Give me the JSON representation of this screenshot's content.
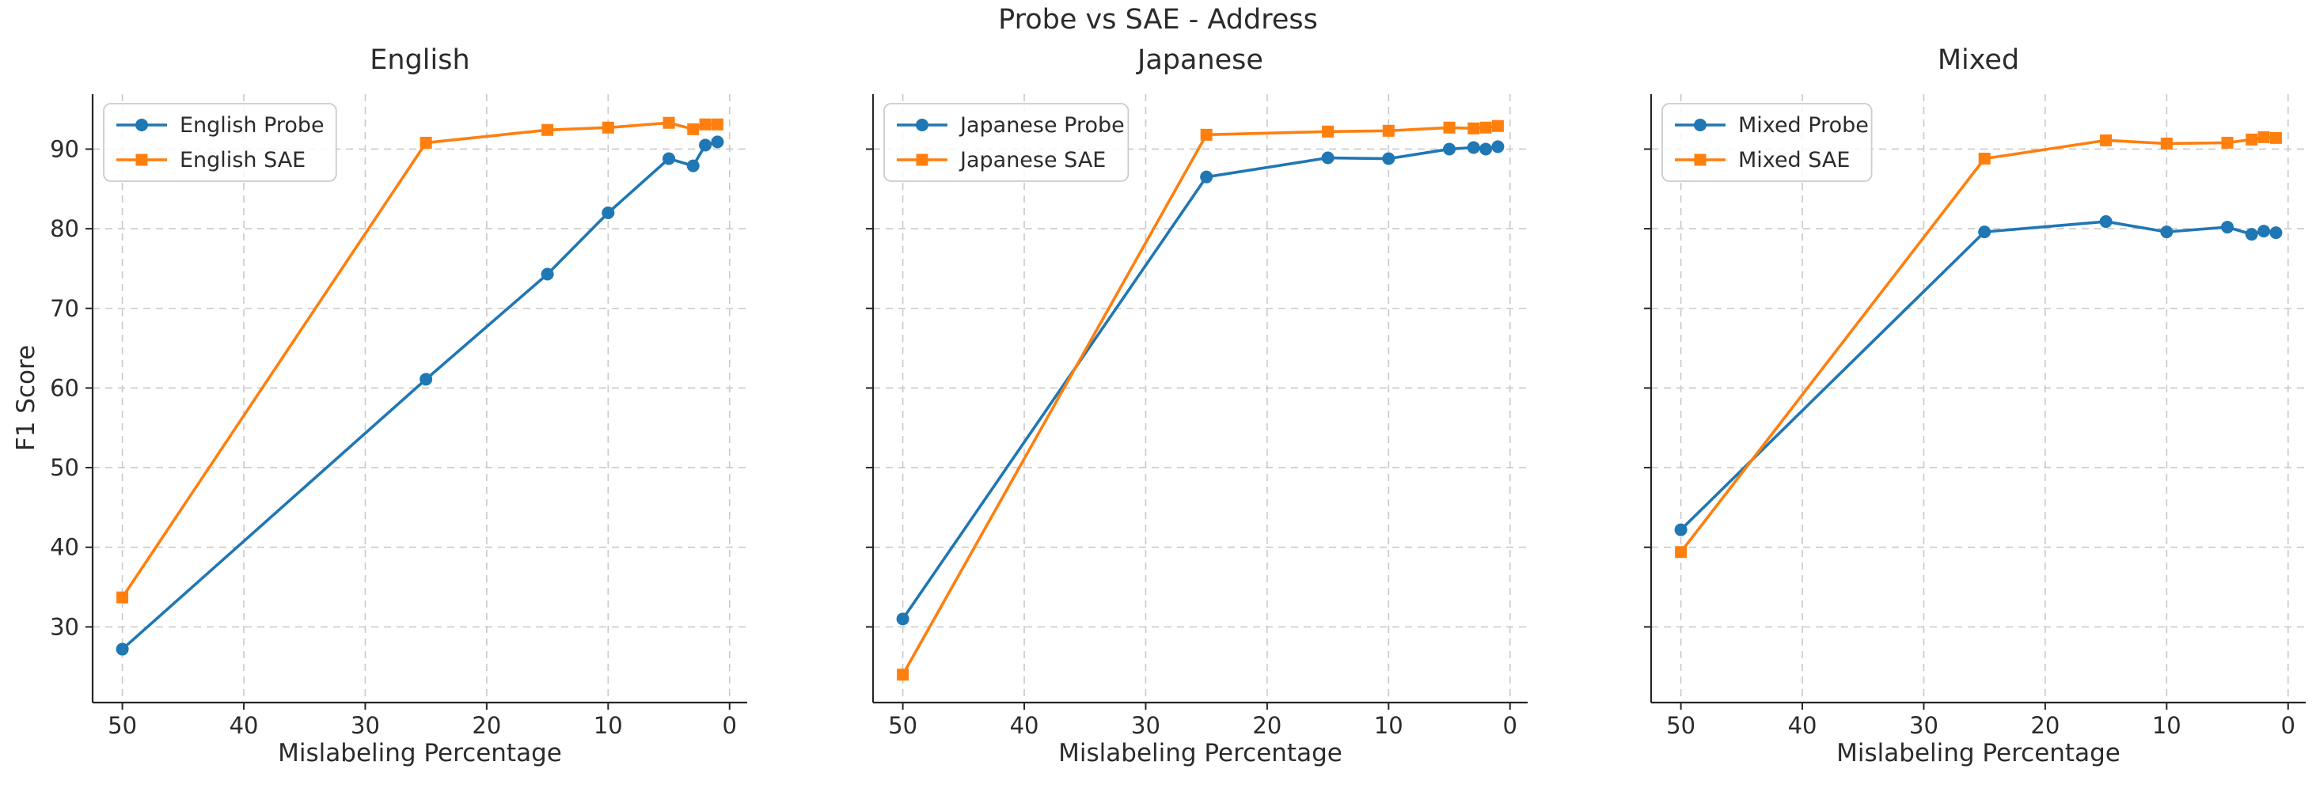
{
  "figure": {
    "title": "Probe vs SAE - Address",
    "background": "#ffffff"
  },
  "colors": {
    "probe": "#1f77b4",
    "sae": "#ff7f0e",
    "grid": "#c9c9c9",
    "spine": "#262626",
    "text": "#2b2b2b",
    "legend_border": "#cccccc"
  },
  "axis": {
    "xlabel": "Mislabeling Percentage",
    "ylabel": "F1 Score",
    "xticks": [
      50,
      40,
      30,
      20,
      10,
      0
    ],
    "yticks": [
      30,
      40,
      50,
      60,
      70,
      80,
      90
    ],
    "xlim": [
      52.45,
      -1.45
    ],
    "ylim": [
      20.5,
      96.9
    ],
    "x_reversed": true,
    "grid": "dashed",
    "legend_position": "upper left"
  },
  "chart_data": [
    {
      "type": "line",
      "title": "English",
      "xlabel": "Mislabeling Percentage",
      "ylabel": "F1 Score",
      "x": [
        50,
        25,
        15,
        10,
        5,
        3,
        2,
        1
      ],
      "series": [
        {
          "name": "English Probe",
          "color": "#1f77b4",
          "marker": "circle",
          "values": [
            27.2,
            61.1,
            74.3,
            82.0,
            88.8,
            87.9,
            90.5,
            90.9
          ]
        },
        {
          "name": "English SAE",
          "color": "#ff7f0e",
          "marker": "square",
          "values": [
            33.7,
            90.8,
            92.4,
            92.7,
            93.3,
            92.5,
            93.1,
            93.1
          ]
        }
      ]
    },
    {
      "type": "line",
      "title": "Japanese",
      "xlabel": "Mislabeling Percentage",
      "ylabel": "",
      "x": [
        50,
        25,
        15,
        10,
        5,
        3,
        2,
        1
      ],
      "series": [
        {
          "name": "Japanese Probe",
          "color": "#1f77b4",
          "marker": "circle",
          "values": [
            31.0,
            86.5,
            88.9,
            88.8,
            90.0,
            90.2,
            90.0,
            90.3
          ]
        },
        {
          "name": "Japanese SAE",
          "color": "#ff7f0e",
          "marker": "square",
          "values": [
            24.0,
            91.8,
            92.2,
            92.3,
            92.7,
            92.6,
            92.7,
            92.9
          ]
        }
      ]
    },
    {
      "type": "line",
      "title": "Mixed",
      "xlabel": "Mislabeling Percentage",
      "ylabel": "",
      "x": [
        50,
        25,
        15,
        10,
        5,
        3,
        2,
        1
      ],
      "series": [
        {
          "name": "Mixed Probe",
          "color": "#1f77b4",
          "marker": "circle",
          "values": [
            42.2,
            79.6,
            80.9,
            79.6,
            80.2,
            79.3,
            79.7,
            79.5
          ]
        },
        {
          "name": "Mixed SAE",
          "color": "#ff7f0e",
          "marker": "square",
          "values": [
            39.4,
            88.8,
            91.1,
            90.7,
            90.8,
            91.2,
            91.5,
            91.4
          ]
        }
      ]
    }
  ]
}
